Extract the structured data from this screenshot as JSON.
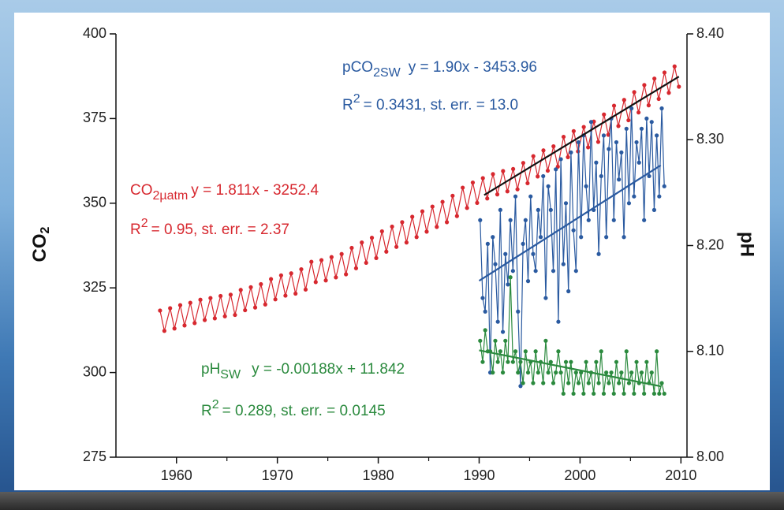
{
  "chart_data": {
    "type": "line",
    "ylabel": [
      "CO",
      "2"
    ],
    "y2label": "pH",
    "xlim": [
      1954,
      2010.6
    ],
    "xticks": [
      1960,
      1970,
      1980,
      1990,
      2000,
      2010
    ],
    "xminorticks": [
      1965,
      1975,
      1985,
      1995,
      2005
    ],
    "ylim": [
      275,
      400
    ],
    "yticks": [
      275,
      300,
      325,
      350,
      375,
      400
    ],
    "y2lim": [
      8.0,
      8.4
    ],
    "y2ticks": [
      {
        "value": 8.0,
        "label": "8.00"
      },
      {
        "value": 8.1,
        "label": "8.10"
      },
      {
        "value": 8.2,
        "label": "8.20"
      },
      {
        "value": 8.3,
        "label": "8.30"
      },
      {
        "value": 8.4,
        "label": "8.40"
      }
    ],
    "annotations": [
      [
        "pCO",
        "2SW",
        "y = 1.90x - 3453.96"
      ],
      [
        "R",
        "2",
        "= 0.3431, st. err. = 13.0"
      ],
      [
        "CO",
        "2µatm",
        "y = 1.811x - 3252.4"
      ],
      [
        "R",
        "2",
        "= 0.95, st. err. = 2.37"
      ],
      [
        "pH",
        "SW",
        "y = -0.00188x + 11.842"
      ],
      [
        "R",
        "2",
        "= 0.289, st. err. = 0.0145"
      ]
    ],
    "series": [
      {
        "color": "#d7282f",
        "axis": "y",
        "markers": true,
        "x": [
          1958.37,
          1958.8,
          1959.37,
          1959.8,
          1960.37,
          1960.8,
          1961.37,
          1961.8,
          1962.37,
          1962.8,
          1963.37,
          1963.8,
          1964.37,
          1964.8,
          1965.37,
          1965.8,
          1966.37,
          1966.8,
          1967.37,
          1967.8,
          1968.37,
          1968.8,
          1969.37,
          1969.8,
          1970.37,
          1970.8,
          1971.37,
          1971.8,
          1972.37,
          1972.8,
          1973.37,
          1973.8,
          1974.37,
          1974.8,
          1975.37,
          1975.8,
          1976.37,
          1976.8,
          1977.37,
          1977.8,
          1978.37,
          1978.8,
          1979.37,
          1979.8,
          1980.37,
          1980.8,
          1981.37,
          1981.8,
          1982.37,
          1982.8,
          1983.37,
          1983.8,
          1984.37,
          1984.8,
          1985.37,
          1985.8,
          1986.37,
          1986.8,
          1987.37,
          1987.8,
          1988.37,
          1988.8,
          1989.37,
          1989.8,
          1990.37,
          1990.8,
          1991.37,
          1991.8,
          1992.37,
          1992.8,
          1993.37,
          1993.8,
          1994.37,
          1994.8,
          1995.37,
          1995.8,
          1996.37,
          1996.8,
          1997.37,
          1997.8,
          1998.37,
          1998.8,
          1999.37,
          1999.8,
          2000.37,
          2000.8,
          2001.37,
          2001.8,
          2002.37,
          2002.8,
          2003.37,
          2003.8,
          2004.37,
          2004.8,
          2005.37,
          2005.8,
          2006.37,
          2006.8,
          2007.37,
          2007.8,
          2008.37,
          2008.8,
          2009.37,
          2009.8
        ],
        "values": [
          318.3,
          312.3,
          319.0,
          313.0,
          319.9,
          313.9,
          320.6,
          314.6,
          321.5,
          315.5,
          322.0,
          316.0,
          322.6,
          316.6,
          323.0,
          317.0,
          324.4,
          318.4,
          325.2,
          319.2,
          326.1,
          320.1,
          327.6,
          321.6,
          328.7,
          322.7,
          329.3,
          323.3,
          330.5,
          324.5,
          332.7,
          326.7,
          333.2,
          327.2,
          334.1,
          328.1,
          335.0,
          329.0,
          336.8,
          330.8,
          338.4,
          332.4,
          339.8,
          333.8,
          341.7,
          335.7,
          343.1,
          337.1,
          344.4,
          338.4,
          346.0,
          340.0,
          347.6,
          341.6,
          349.0,
          343.0,
          350.4,
          344.4,
          352.2,
          346.2,
          354.6,
          348.6,
          356.1,
          350.1,
          357.4,
          351.4,
          358.6,
          352.6,
          359.5,
          353.5,
          360.1,
          354.1,
          361.9,
          355.9,
          363.9,
          357.9,
          365.6,
          359.6,
          366.8,
          360.8,
          369.6,
          363.6,
          371.3,
          365.3,
          372.5,
          366.5,
          374.1,
          368.1,
          376.2,
          370.2,
          378.8,
          372.8,
          380.5,
          374.5,
          382.8,
          376.8,
          384.9,
          378.9,
          386.8,
          380.8,
          388.6,
          382.6,
          390.4,
          384.4
        ]
      },
      {
        "color": "#2a5aa0",
        "axis": "y",
        "markers": true,
        "x": [
          1990.1,
          1990.35,
          1990.6,
          1990.85,
          1991.1,
          1991.35,
          1991.6,
          1991.85,
          1992.1,
          1992.35,
          1992.6,
          1992.85,
          1993.1,
          1993.35,
          1993.6,
          1993.85,
          1994.1,
          1994.35,
          1994.6,
          1994.85,
          1995.1,
          1995.35,
          1995.6,
          1995.85,
          1996.1,
          1996.35,
          1996.6,
          1996.85,
          1997.1,
          1997.35,
          1997.6,
          1997.85,
          1998.1,
          1998.35,
          1998.6,
          1998.85,
          1999.1,
          1999.35,
          1999.6,
          1999.85,
          2000.1,
          2000.35,
          2000.6,
          2000.85,
          2001.1,
          2001.35,
          2001.6,
          2001.85,
          2002.1,
          2002.35,
          2002.6,
          2002.85,
          2003.1,
          2003.35,
          2003.6,
          2003.85,
          2004.1,
          2004.35,
          2004.6,
          2004.85,
          2005.1,
          2005.35,
          2005.6,
          2005.85,
          2006.1,
          2006.35,
          2006.6,
          2006.85,
          2007.1,
          2007.35,
          2007.6,
          2007.85,
          2008.1,
          2008.35
        ],
        "values": [
          345,
          322,
          318,
          338,
          300,
          340,
          332,
          315,
          348,
          312,
          335,
          326,
          345,
          330,
          352,
          318,
          296,
          338,
          345,
          327,
          352,
          335,
          330,
          348,
          340,
          358,
          322,
          355,
          348,
          330,
          360,
          315,
          363,
          332,
          350,
          324,
          365,
          342,
          330,
          368,
          340,
          370,
          355,
          345,
          374,
          348,
          362,
          335,
          358,
          370,
          340,
          366,
          375,
          345,
          368,
          357,
          365,
          340,
          372,
          350,
          378,
          352,
          368,
          362,
          372,
          345,
          375,
          358,
          374,
          348,
          370,
          352,
          378,
          355
        ]
      },
      {
        "color": "#2b8a3e",
        "axis": "y2",
        "markers": true,
        "x": [
          1990.1,
          1990.35,
          1990.6,
          1990.85,
          1991.1,
          1991.35,
          1991.6,
          1991.85,
          1992.1,
          1992.35,
          1992.6,
          1992.85,
          1993.1,
          1993.35,
          1993.6,
          1993.85,
          1994.1,
          1994.35,
          1994.6,
          1994.85,
          1995.1,
          1995.35,
          1995.6,
          1995.85,
          1996.1,
          1996.35,
          1996.6,
          1996.85,
          1997.1,
          1997.35,
          1997.6,
          1997.85,
          1998.1,
          1998.35,
          1998.6,
          1998.85,
          1999.1,
          1999.35,
          1999.6,
          1999.85,
          2000.1,
          2000.35,
          2000.6,
          2000.85,
          2001.1,
          2001.35,
          2001.6,
          2001.85,
          2002.1,
          2002.35,
          2002.6,
          2002.85,
          2003.1,
          2003.35,
          2003.6,
          2003.85,
          2004.1,
          2004.35,
          2004.6,
          2004.85,
          2005.1,
          2005.35,
          2005.6,
          2005.85,
          2006.1,
          2006.35,
          2006.6,
          2006.85,
          2007.1,
          2007.35,
          2007.6,
          2007.85,
          2008.1,
          2008.35
        ],
        "values": [
          8.11,
          8.09,
          8.12,
          8.1,
          8.1,
          8.08,
          8.11,
          8.09,
          8.1,
          8.08,
          8.11,
          8.09,
          8.17,
          8.09,
          8.1,
          8.08,
          8.09,
          8.07,
          8.1,
          8.08,
          8.09,
          8.07,
          8.1,
          8.08,
          8.09,
          8.07,
          8.11,
          8.08,
          8.09,
          8.07,
          8.08,
          8.1,
          8.08,
          8.06,
          8.09,
          8.07,
          8.09,
          8.06,
          8.08,
          8.07,
          8.08,
          8.06,
          8.09,
          8.07,
          8.08,
          8.06,
          8.09,
          8.07,
          8.1,
          8.06,
          8.08,
          8.07,
          8.08,
          8.06,
          8.09,
          8.07,
          8.08,
          8.06,
          8.1,
          8.07,
          8.08,
          8.06,
          8.09,
          8.07,
          8.08,
          8.06,
          8.09,
          8.07,
          8.08,
          8.06,
          8.1,
          8.06,
          8.07,
          8.06
        ]
      },
      {
        "color": "#111111",
        "axis": "y",
        "markers": false,
        "x": [
          1990.5,
          2009.8
        ],
        "values": [
          352.4,
          387.4
        ]
      },
      {
        "color": "#2a5aa0",
        "axis": "y",
        "markers": false,
        "x": [
          1990,
          2008
        ],
        "values": [
          327.1,
          361.2
        ]
      },
      {
        "color": "#2b8a3e",
        "axis": "y2",
        "markers": false,
        "x": [
          1990,
          2008
        ],
        "values": [
          8.101,
          8.067
        ]
      }
    ]
  }
}
